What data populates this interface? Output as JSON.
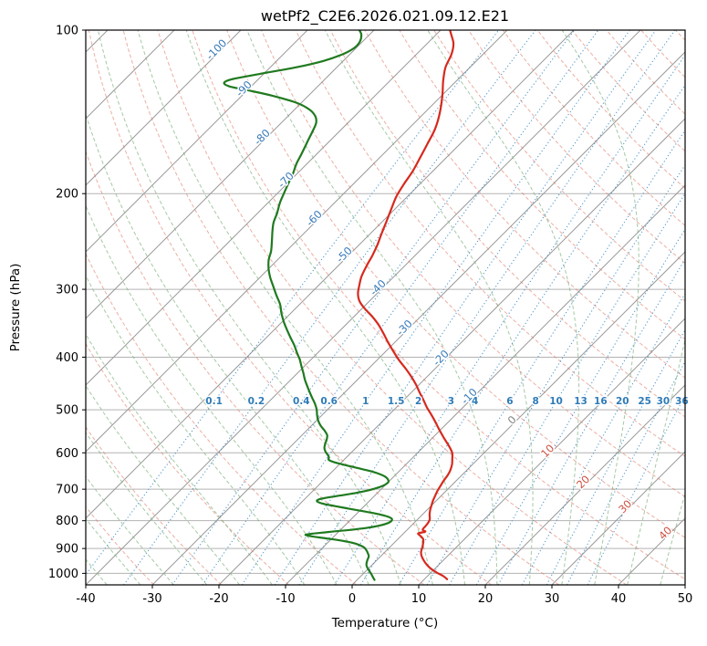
{
  "chart_data": {
    "type": "line",
    "variant": "skew_t_log_p_sounding",
    "title": "wetPf2_C2E6.2026.021.09.12.E21",
    "xlabel": "Temperature (°C)",
    "ylabel": "Pressure (hPa)",
    "xlim": [
      -40,
      50
    ],
    "pressure_lim": [
      100,
      1050
    ],
    "skew_deg": 45,
    "grid": true,
    "x_ticks": [
      -40,
      -30,
      -20,
      -10,
      0,
      10,
      20,
      30,
      40,
      50
    ],
    "isobars": [
      100,
      200,
      300,
      400,
      500,
      600,
      700,
      800,
      900,
      1000
    ],
    "isotherms": {
      "start": -120,
      "end": 50,
      "step": 10
    },
    "isotherm_labels": [
      -100,
      -90,
      -80,
      -70,
      -60,
      -50,
      -40,
      -30,
      -20,
      -10,
      0,
      10,
      20,
      30,
      40
    ],
    "dry_adiabats_K": {
      "start": 230,
      "end": 470,
      "step": 10
    },
    "moist_adiabats_C": {
      "start": -40,
      "end": 50,
      "step": 5
    },
    "mixing_ratios_g_kg": [
      "0.1",
      "0.2",
      "0.4",
      "0.6",
      "1",
      "1.5",
      "2",
      "3",
      "4",
      "6",
      "8",
      "10",
      "13",
      "16",
      "20",
      "25",
      "30",
      "36"
    ],
    "mixing_label_pressure": 483,
    "colors": {
      "isobar": "#b3b3b3",
      "isotherm": "#9a9a9a",
      "dry_adiabat": "#dd7a66",
      "moist_adiabat": "#7fb27f",
      "mixing_ratio": "#4591c8",
      "temperature": "#d62a1e",
      "dewpoint": "#1f7a1f",
      "label_negative": "#3679b8",
      "label_zero": "#808080",
      "label_positive": "#cd5042",
      "mixing_label": "#2f7bb8",
      "axis": "#000000"
    },
    "series": [
      {
        "name": "temperature",
        "color": "#d62a1e",
        "points": [
          [
            1025,
            13.4
          ],
          [
            1012,
            12.4
          ],
          [
            998,
            11.0
          ],
          [
            984,
            9.7
          ],
          [
            970,
            8.6
          ],
          [
            955,
            7.6
          ],
          [
            940,
            6.7
          ],
          [
            925,
            5.9
          ],
          [
            910,
            5.3
          ],
          [
            895,
            4.9
          ],
          [
            880,
            4.4
          ],
          [
            865,
            3.8
          ],
          [
            852,
            2.8
          ],
          [
            844,
            2.2
          ],
          [
            838,
            3.0
          ],
          [
            831,
            2.3
          ],
          [
            820,
            2.2
          ],
          [
            808,
            2.1
          ],
          [
            795,
            1.8
          ],
          [
            780,
            1.1
          ],
          [
            765,
            0.5
          ],
          [
            750,
            0.0
          ],
          [
            735,
            -0.5
          ],
          [
            720,
            -0.9
          ],
          [
            705,
            -1.3
          ],
          [
            690,
            -1.6
          ],
          [
            675,
            -1.9
          ],
          [
            660,
            -2.1
          ],
          [
            645,
            -2.5
          ],
          [
            630,
            -3.1
          ],
          [
            615,
            -3.9
          ],
          [
            600,
            -4.8
          ],
          [
            585,
            -6.1
          ],
          [
            570,
            -7.6
          ],
          [
            555,
            -9.1
          ],
          [
            540,
            -10.6
          ],
          [
            525,
            -12.1
          ],
          [
            510,
            -13.7
          ],
          [
            495,
            -15.4
          ],
          [
            480,
            -17.0
          ],
          [
            465,
            -18.7
          ],
          [
            450,
            -20.4
          ],
          [
            435,
            -22.3
          ],
          [
            420,
            -24.4
          ],
          [
            405,
            -26.7
          ],
          [
            390,
            -28.9
          ],
          [
            375,
            -31.1
          ],
          [
            360,
            -33.3
          ],
          [
            348,
            -35.2
          ],
          [
            336,
            -37.4
          ],
          [
            326,
            -39.5
          ],
          [
            316,
            -41.4
          ],
          [
            306,
            -42.8
          ],
          [
            296,
            -43.8
          ],
          [
            284,
            -44.9
          ],
          [
            272,
            -45.7
          ],
          [
            260,
            -46.4
          ],
          [
            248,
            -47.3
          ],
          [
            236,
            -48.4
          ],
          [
            224,
            -49.5
          ],
          [
            212,
            -50.7
          ],
          [
            202,
            -51.7
          ],
          [
            192,
            -52.4
          ],
          [
            182,
            -53.0
          ],
          [
            172,
            -53.9
          ],
          [
            162,
            -54.9
          ],
          [
            152,
            -56.0
          ],
          [
            142,
            -57.7
          ],
          [
            132,
            -59.9
          ],
          [
            124,
            -62.0
          ],
          [
            117,
            -63.7
          ],
          [
            111,
            -64.7
          ],
          [
            106,
            -66.0
          ],
          [
            102,
            -67.7
          ],
          [
            100,
            -68.6
          ]
        ]
      },
      {
        "name": "dewpoint",
        "color": "#1f7a1f",
        "points": [
          [
            1028,
            2.6
          ],
          [
            1015,
            1.9
          ],
          [
            1002,
            1.2
          ],
          [
            990,
            0.5
          ],
          [
            978,
            -0.2
          ],
          [
            966,
            -0.8
          ],
          [
            954,
            -1.2
          ],
          [
            942,
            -1.5
          ],
          [
            930,
            -1.8
          ],
          [
            918,
            -2.4
          ],
          [
            906,
            -3.1
          ],
          [
            894,
            -4.0
          ],
          [
            882,
            -5.6
          ],
          [
            872,
            -7.8
          ],
          [
            863,
            -10.6
          ],
          [
            856,
            -13.0
          ],
          [
            850,
            -14.5
          ],
          [
            845,
            -13.6
          ],
          [
            839,
            -11.4
          ],
          [
            832,
            -8.6
          ],
          [
            824,
            -6.2
          ],
          [
            816,
            -4.7
          ],
          [
            808,
            -3.9
          ],
          [
            800,
            -3.7
          ],
          [
            792,
            -4.1
          ],
          [
            784,
            -5.3
          ],
          [
            776,
            -7.2
          ],
          [
            768,
            -9.6
          ],
          [
            760,
            -12.0
          ],
          [
            752,
            -14.4
          ],
          [
            745,
            -16.4
          ],
          [
            738,
            -17.7
          ],
          [
            732,
            -17.9
          ],
          [
            726,
            -17.0
          ],
          [
            719,
            -15.2
          ],
          [
            711,
            -13.2
          ],
          [
            703,
            -11.7
          ],
          [
            695,
            -10.7
          ],
          [
            687,
            -10.1
          ],
          [
            679,
            -10.0
          ],
          [
            671,
            -10.5
          ],
          [
            663,
            -11.4
          ],
          [
            655,
            -12.8
          ],
          [
            647,
            -14.7
          ],
          [
            639,
            -17.0
          ],
          [
            631,
            -19.3
          ],
          [
            624,
            -21.2
          ],
          [
            618,
            -22.3
          ],
          [
            612,
            -22.6
          ],
          [
            605,
            -23.2
          ],
          [
            597,
            -24.0
          ],
          [
            588,
            -24.7
          ],
          [
            578,
            -25.2
          ],
          [
            568,
            -25.6
          ],
          [
            557,
            -26.2
          ],
          [
            546,
            -27.3
          ],
          [
            535,
            -28.6
          ],
          [
            524,
            -29.7
          ],
          [
            512,
            -30.7
          ],
          [
            500,
            -31.6
          ],
          [
            488,
            -32.7
          ],
          [
            476,
            -34.0
          ],
          [
            464,
            -35.3
          ],
          [
            452,
            -36.6
          ],
          [
            440,
            -37.9
          ],
          [
            428,
            -39.1
          ],
          [
            416,
            -40.4
          ],
          [
            404,
            -41.7
          ],
          [
            392,
            -43.2
          ],
          [
            380,
            -44.7
          ],
          [
            368,
            -46.4
          ],
          [
            356,
            -48.1
          ],
          [
            344,
            -49.8
          ],
          [
            332,
            -51.4
          ],
          [
            320,
            -52.9
          ],
          [
            308,
            -54.8
          ],
          [
            296,
            -56.7
          ],
          [
            285,
            -58.5
          ],
          [
            275,
            -60.0
          ],
          [
            265,
            -61.3
          ],
          [
            255,
            -62.3
          ],
          [
            245,
            -63.6
          ],
          [
            235,
            -65.0
          ],
          [
            226,
            -66.2
          ],
          [
            217,
            -67.1
          ],
          [
            208,
            -68.2
          ],
          [
            200,
            -69.0
          ],
          [
            192,
            -69.8
          ],
          [
            184,
            -70.6
          ],
          [
            176,
            -71.6
          ],
          [
            168,
            -72.4
          ],
          [
            160,
            -73.3
          ],
          [
            153,
            -74.1
          ],
          [
            148,
            -74.8
          ],
          [
            144,
            -75.9
          ],
          [
            140,
            -77.8
          ],
          [
            136,
            -80.8
          ],
          [
            132,
            -85.5
          ],
          [
            129,
            -90.0
          ],
          [
            127,
            -93.2
          ],
          [
            125,
            -94.6
          ],
          [
            123,
            -93.8
          ],
          [
            120,
            -90.0
          ],
          [
            117,
            -86.0
          ],
          [
            114,
            -83.0
          ],
          [
            111,
            -81.2
          ],
          [
            108,
            -80.3
          ],
          [
            105,
            -80.4
          ],
          [
            102,
            -81.2
          ],
          [
            100,
            -82.2
          ]
        ]
      }
    ]
  }
}
